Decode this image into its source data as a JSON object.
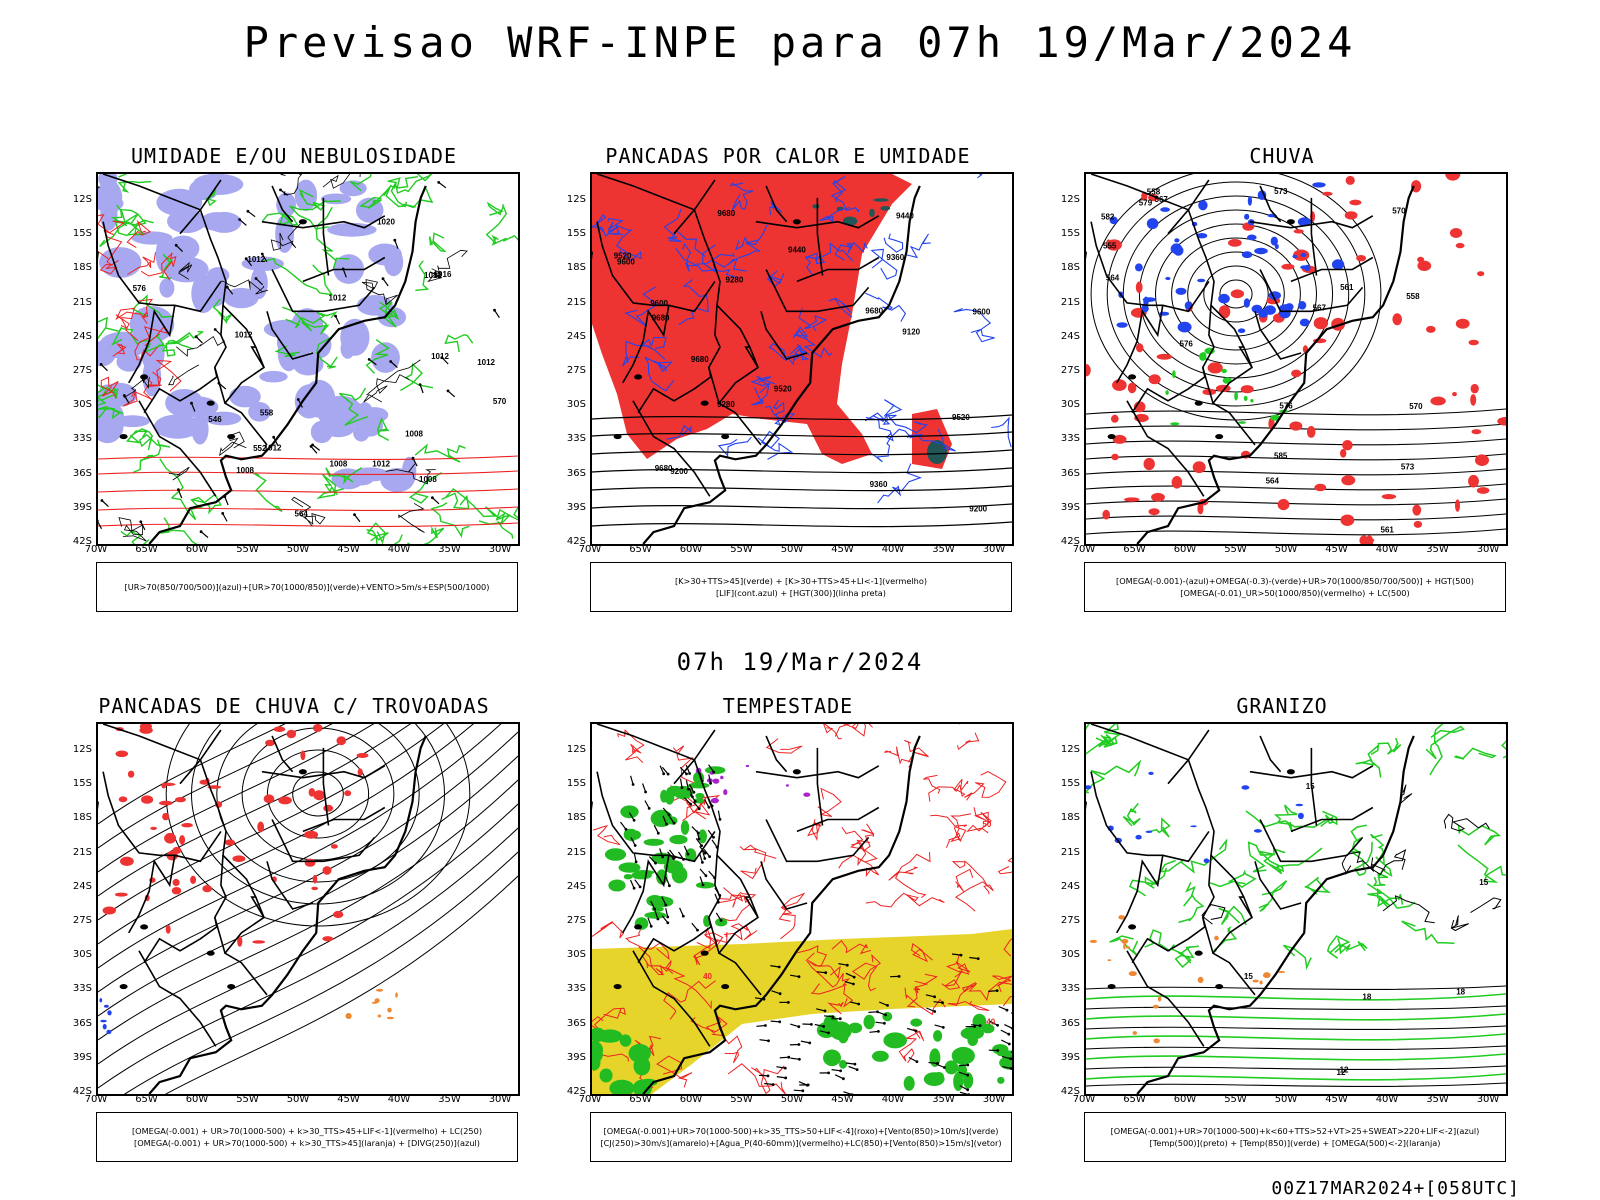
{
  "title": "Previsao WRF-INPE  para 07h 19/Mar/2024",
  "mid_title": "07h 19/Mar/2024",
  "run_label": "00Z17MAR2024+[058UTC]",
  "lat_labels": [
    "12S",
    "15S",
    "18S",
    "21S",
    "24S",
    "27S",
    "30S",
    "33S",
    "36S",
    "39S",
    "42S"
  ],
  "lon_labels": [
    "70W",
    "65W",
    "60W",
    "55W",
    "50W",
    "45W",
    "40W",
    "35W",
    "30W"
  ],
  "colors": {
    "blue_shade": "#a8a8f0",
    "green_contour": "#22cc22",
    "red_contour": "#ee2222",
    "red_fill": "#ee3333",
    "blue_contour": "#2244ee",
    "yellow_fill": "#e6d42a",
    "green_fill": "#22bb22",
    "orange_fill": "#ee8833",
    "purple_fill": "#aa22cc",
    "teal_fill": "#225555"
  },
  "panels": [
    {
      "id": "umidade",
      "title": "UMIDADE E/OU NEBULOSIDADE",
      "legend": [
        "[UR>70(850/700/500)](azul)+[UR>70(1000/850)](verde)+VENTO>5m/s+ESP(500/1000)"
      ],
      "contour_labels": [
        "1012",
        "1008",
        "1012",
        "1012",
        "1012",
        "1008",
        "1012",
        "1008",
        "1012",
        "1012",
        "1008",
        "1012",
        "1016",
        "1020",
        "576",
        "570",
        "564",
        "558",
        "552",
        "546"
      ]
    },
    {
      "id": "pancadas",
      "title": "PANCADAS POR CALOR E UMIDADE",
      "legend": [
        "[K>30+TTS>45](verde) + [K>30+TTS>45+LI<-1](vermelho)",
        "[LIF](cont.azul) + [HGT(300)](linha preta)"
      ],
      "contour_labels": [
        "9680",
        "9680",
        "9680",
        "9680",
        "9680",
        "9600",
        "9600",
        "9520",
        "9520",
        "9440",
        "9360",
        "9280",
        "9200",
        "9120",
        "9520",
        "9600",
        "9440",
        "9360",
        "9280",
        "9200"
      ]
    },
    {
      "id": "chuva",
      "title": "CHUVA",
      "legend": [
        "[OMEGA(-0.001)-(azul)+OMEGA(-0.3)-(verde)+UR>70(1000/850/700/500)] + HGT(500)",
        "[OMEGA(-0.01)_UR>50(1000/850)(vermelho) + LC(500)"
      ],
      "contour_labels": [
        "585",
        "582",
        "579",
        "576",
        "573",
        "570",
        "567",
        "564",
        "561",
        "558",
        "555",
        "576",
        "573",
        "570",
        "567",
        "564",
        "561",
        "558"
      ]
    },
    {
      "id": "trovoadas",
      "title": "PANCADAS DE CHUVA C/ TROVOADAS",
      "legend": [
        "[OMEGA(-0.001) + UR>70(1000-500) + k>30_TTS>45+LIF<-1](vermelho) + LC(250)",
        "[OMEGA(-0.001) + UR>70(1000-500) + k>30_TTS>45](laranja) + [DIVG(250)](azul)"
      ],
      "contour_labels": []
    },
    {
      "id": "tempestade",
      "title": "TEMPESTADE",
      "legend": [
        "[OMEGA(-0.001)+UR>70(1000-500)+k>35_TTS>50+LIF<-4](roxo)+[Vento(850)>10m/s](verde)",
        "[CJ(250)>30m/s](amarelo)+[Agua_P(40-60mm)](vermelho)+LC(850)+[Vento(850)>15m/s](vetor)"
      ],
      "contour_labels": [
        "40",
        "40",
        "50"
      ]
    },
    {
      "id": "granizo",
      "title": "GRANIZO",
      "legend": [
        "[OMEGA(-0.001)+UR>70(1000-500)+k<60+TTS>52+VT>25+SWEAT>220+LIF<-2](azul)",
        "[Temp(500)](preto) + [Temp(850)](verde) + [OMEGA(500)<-2](laranja)"
      ],
      "contour_labels": [
        "12",
        "12",
        "15",
        "15",
        "18",
        "18",
        "15"
      ]
    }
  ]
}
